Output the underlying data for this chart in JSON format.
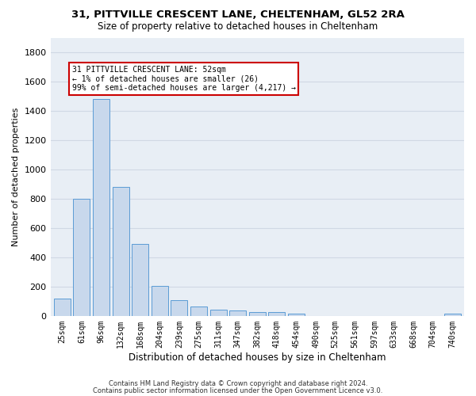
{
  "title1": "31, PITTVILLE CRESCENT LANE, CHELTENHAM, GL52 2RA",
  "title2": "Size of property relative to detached houses in Cheltenham",
  "xlabel": "Distribution of detached houses by size in Cheltenham",
  "ylabel": "Number of detached properties",
  "bar_color": "#c8d8ec",
  "bar_edge_color": "#5b9bd5",
  "grid_color": "#d0d8e4",
  "background_color": "#e8eef5",
  "categories": [
    "25sqm",
    "61sqm",
    "96sqm",
    "132sqm",
    "168sqm",
    "204sqm",
    "239sqm",
    "275sqm",
    "311sqm",
    "347sqm",
    "382sqm",
    "418sqm",
    "454sqm",
    "490sqm",
    "525sqm",
    "561sqm",
    "597sqm",
    "633sqm",
    "668sqm",
    "704sqm",
    "740sqm"
  ],
  "values": [
    120,
    800,
    1480,
    880,
    490,
    205,
    105,
    65,
    40,
    35,
    28,
    25,
    13,
    0,
    0,
    0,
    0,
    0,
    0,
    0,
    18
  ],
  "ylim": [
    0,
    1900
  ],
  "yticks": [
    0,
    200,
    400,
    600,
    800,
    1000,
    1200,
    1400,
    1600,
    1800
  ],
  "annotation_text": "31 PITTVILLE CRESCENT LANE: 52sqm\n← 1% of detached houses are smaller (26)\n99% of semi-detached houses are larger (4,217) →",
  "annotation_box_color": "#ffffff",
  "annotation_box_edge_color": "#cc0000",
  "footer1": "Contains HM Land Registry data © Crown copyright and database right 2024.",
  "footer2": "Contains public sector information licensed under the Open Government Licence v3.0."
}
